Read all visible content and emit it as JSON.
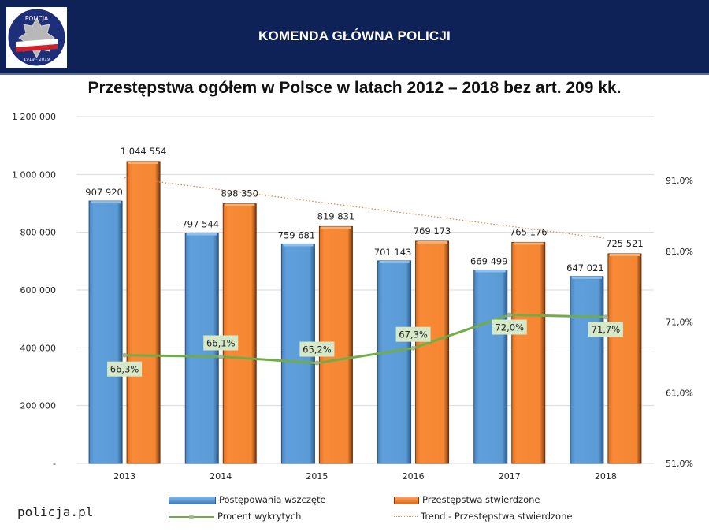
{
  "header": {
    "org_name": "KOMENDA GŁÓWNA POLICJI",
    "logo": {
      "top_text": "POLICJA",
      "bottom_text": "1919 - 2019"
    },
    "bg_color": "#0f2257"
  },
  "footer": {
    "site": "policja.pl"
  },
  "chart_data": {
    "type": "bar",
    "title": "Przestępstwa ogółem w Polsce w latach 2012 – 2018 bez art. 209 kk.",
    "categories": [
      "2013",
      "2014",
      "2015",
      "2016",
      "2017",
      "2018"
    ],
    "series": [
      {
        "name": "Postępowania wszczęte",
        "type": "bar",
        "axis": "left",
        "color": "#5b9bd5",
        "values": [
          907920,
          797544,
          759681,
          701143,
          669499,
          647021
        ],
        "labels": [
          "907 920",
          "797 544",
          "759 681",
          "701 143",
          "669 499",
          "647 021"
        ]
      },
      {
        "name": "Przestępstwa stwierdzone",
        "type": "bar",
        "axis": "left",
        "color": "#f58632",
        "values": [
          1044554,
          898350,
          819831,
          769173,
          765176,
          725521
        ],
        "labels": [
          "1 044 554",
          "898 350",
          "819 831",
          "769 173",
          "765 176",
          "725 521"
        ]
      },
      {
        "name": "Procent wykrytych",
        "type": "line",
        "axis": "right",
        "color": "#70ad47",
        "values": [
          66.3,
          66.1,
          65.2,
          67.3,
          72.0,
          71.7
        ],
        "labels": [
          "66,3%",
          "66,1%",
          "65,2%",
          "67,3%",
          "72,0%",
          "71,7%"
        ]
      },
      {
        "name": "Trend - Przestępstwa stwierdzone",
        "type": "trendline",
        "axis": "left",
        "color": "#e8884a",
        "values": [
          989000,
          947000,
          905000,
          863000,
          821000,
          779000
        ]
      }
    ],
    "left_axis": {
      "min": 0,
      "max": 1200000,
      "step": 200000,
      "tick_labels": [
        "-",
        "200 000",
        "400 000",
        "600 000",
        "800 000",
        "1 000 000",
        "1 200 000"
      ]
    },
    "right_axis": {
      "min": 51,
      "max": 91,
      "step": 10,
      "tick_labels": [
        "51,0%",
        "61,0%",
        "71,0%",
        "81,0%",
        "91,0%"
      ]
    },
    "grid": true,
    "legend_position": "bottom"
  }
}
